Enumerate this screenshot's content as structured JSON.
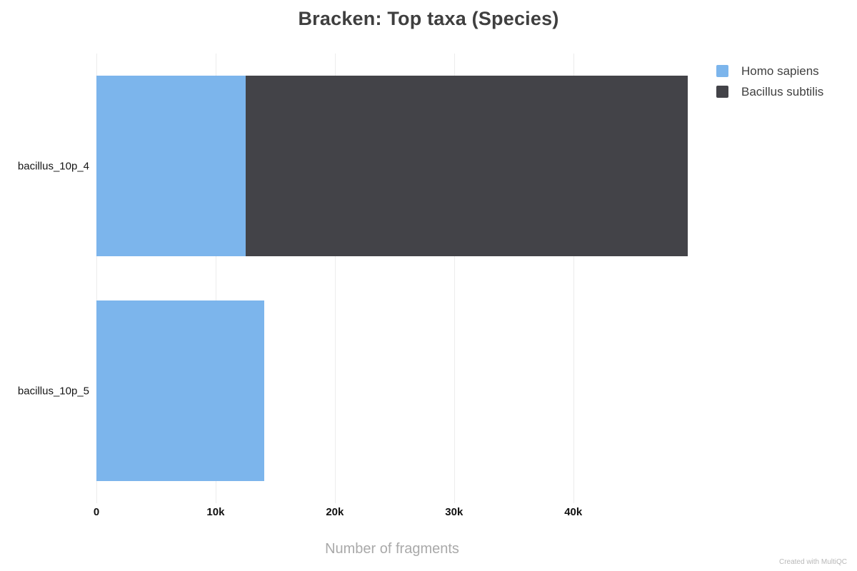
{
  "title": "Bracken: Top taxa (Species)",
  "watermark": "Created with MultiQC",
  "chart_data": {
    "type": "bar",
    "orientation": "horizontal",
    "stacked": true,
    "title": "Bracken: Top taxa (Species)",
    "xlabel": "Number of fragments",
    "ylabel": "",
    "categories": [
      "bacillus_10p_4",
      "bacillus_10p_5"
    ],
    "series": [
      {
        "name": "Homo sapiens",
        "color": "#7cb5ec",
        "values": [
          12500,
          14100
        ]
      },
      {
        "name": "Bacillus subtilis",
        "color": "#434348",
        "values": [
          37100,
          0
        ]
      }
    ],
    "xlim": [
      0,
      49600
    ],
    "xticks": [
      {
        "value": 0,
        "label": "0"
      },
      {
        "value": 10000,
        "label": "10k"
      },
      {
        "value": 20000,
        "label": "20k"
      },
      {
        "value": 30000,
        "label": "30k"
      },
      {
        "value": 40000,
        "label": "40k"
      }
    ],
    "grid": true,
    "legend_position": "top-right"
  }
}
